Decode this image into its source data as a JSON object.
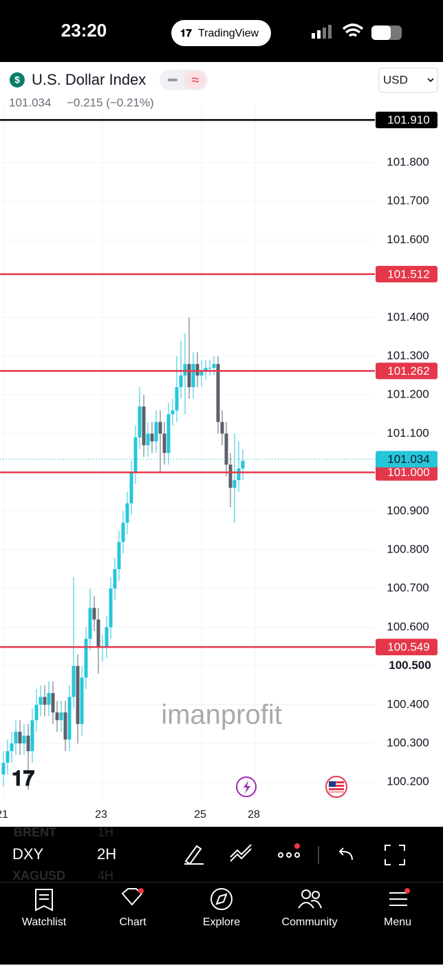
{
  "status_bar": {
    "time": "23:20",
    "app": "TradingView"
  },
  "header": {
    "symbol": "U.S. Dollar Index",
    "price": "101.034",
    "change": "−0.215 (−0.21%)",
    "currency": "USD"
  },
  "chart_data": {
    "type": "candlestick",
    "categories": [
      "21",
      null,
      null,
      null,
      null,
      null,
      null,
      null,
      null,
      null,
      null,
      null,
      null,
      null,
      null,
      null,
      null,
      null,
      null,
      null,
      null,
      null,
      null,
      null,
      "23",
      null,
      null,
      null,
      null,
      null,
      null,
      null,
      null,
      null,
      null,
      null,
      null,
      null,
      null,
      null,
      null,
      null,
      null,
      null,
      null,
      null,
      null,
      null,
      "25",
      null,
      null,
      null,
      null,
      null,
      null,
      null,
      null,
      null,
      null,
      null,
      null,
      "28"
    ],
    "open": [
      100.22,
      100.25,
      100.28,
      100.3,
      100.33,
      100.3,
      100.32,
      100.28,
      100.36,
      100.4,
      100.42,
      100.4,
      100.43,
      100.38,
      100.36,
      100.38,
      100.31,
      100.42,
      100.5,
      100.35,
      100.47,
      100.57,
      100.65,
      100.62,
      100.55,
      100.55,
      100.6,
      100.7,
      100.75,
      100.82,
      100.87,
      100.92,
      101.0,
      101.09,
      101.17,
      101.07,
      101.1,
      101.08,
      101.13,
      101.1,
      101.05,
      101.15,
      101.16,
      101.22,
      101.25,
      101.28,
      101.22,
      101.28,
      101.25,
      101.26,
      101.27,
      101.27,
      101.28,
      101.13,
      101.1,
      101.02,
      100.96,
      100.98,
      101.01,
      null,
      null,
      null
    ],
    "high": [
      100.28,
      100.31,
      100.33,
      100.36,
      100.36,
      100.35,
      100.35,
      100.39,
      100.44,
      100.45,
      100.45,
      100.46,
      100.46,
      100.41,
      100.41,
      100.41,
      100.45,
      100.73,
      100.53,
      100.5,
      100.6,
      100.7,
      100.68,
      100.65,
      100.58,
      100.63,
      100.73,
      100.78,
      100.85,
      100.9,
      100.95,
      101.03,
      101.12,
      101.22,
      101.2,
      101.13,
      101.13,
      101.16,
      101.16,
      101.13,
      101.18,
      101.19,
      101.3,
      101.34,
      101.36,
      101.4,
      101.31,
      101.31,
      101.29,
      101.29,
      101.29,
      101.3,
      101.3,
      101.16,
      101.13,
      101.05,
      101.1,
      101.08,
      101.06,
      null,
      null,
      null
    ],
    "low": [
      100.19,
      100.22,
      100.25,
      100.27,
      100.27,
      100.27,
      100.18,
      100.25,
      100.33,
      100.37,
      100.37,
      100.37,
      100.35,
      100.33,
      100.33,
      100.28,
      100.28,
      100.39,
      100.3,
      100.32,
      100.44,
      100.54,
      100.59,
      100.48,
      100.51,
      100.52,
      100.57,
      100.67,
      100.72,
      100.79,
      100.84,
      100.89,
      100.97,
      101.06,
      101.04,
      101.04,
      101.05,
      101.05,
      101.0,
      101.02,
      101.02,
      101.12,
      101.13,
      101.19,
      101.15,
      101.19,
      101.19,
      101.22,
      101.22,
      101.24,
      101.25,
      101.25,
      101.1,
      101.07,
      100.99,
      100.91,
      100.87,
      100.95,
      100.98,
      null,
      null,
      null
    ],
    "close": [
      100.25,
      100.28,
      100.3,
      100.33,
      100.3,
      100.32,
      100.28,
      100.36,
      100.4,
      100.42,
      100.4,
      100.43,
      100.38,
      100.36,
      100.38,
      100.31,
      100.42,
      100.5,
      100.35,
      100.47,
      100.57,
      100.65,
      100.62,
      100.55,
      100.55,
      100.6,
      100.7,
      100.75,
      100.82,
      100.87,
      100.92,
      101.0,
      101.09,
      101.17,
      101.07,
      101.1,
      101.08,
      101.13,
      101.1,
      101.05,
      101.15,
      101.16,
      101.22,
      101.25,
      101.28,
      101.22,
      101.28,
      101.25,
      101.26,
      101.27,
      101.27,
      101.28,
      101.13,
      101.1,
      101.02,
      100.96,
      100.98,
      101.01,
      101.03,
      null,
      null,
      null
    ],
    "up_color": "#26c6da",
    "down_color": "#5d606b",
    "ylim": [
      100.147,
      101.953
    ],
    "yticks": [
      {
        "value": 100.2,
        "label": "100.200"
      },
      {
        "value": 100.3,
        "label": "100.300"
      },
      {
        "value": 100.4,
        "label": "100.400"
      },
      {
        "value": 100.6,
        "label": "100.600"
      },
      {
        "value": 100.7,
        "label": "100.700"
      },
      {
        "value": 100.8,
        "label": "100.800"
      },
      {
        "value": 100.9,
        "label": "100.900"
      },
      {
        "value": 101.1,
        "label": "101.100"
      },
      {
        "value": 101.2,
        "label": "101.200"
      },
      {
        "value": 101.3,
        "label": "101.300"
      },
      {
        "value": 101.4,
        "label": "101.400"
      },
      {
        "value": 101.6,
        "label": "101.600"
      },
      {
        "value": 101.7,
        "label": "101.700"
      },
      {
        "value": 101.8,
        "label": "101.800"
      }
    ],
    "highlight_level": {
      "value": 100.5,
      "label": "100.500"
    },
    "levels": [
      {
        "value": 101.91,
        "label": "101.910",
        "color": "#000000"
      },
      {
        "value": 101.512,
        "label": "101.512",
        "color": "#e5374a"
      },
      {
        "value": 101.262,
        "label": "101.262",
        "color": "#e5374a"
      },
      {
        "value": 101.0,
        "label": "101.000",
        "color": "#e5374a"
      },
      {
        "value": 100.549,
        "label": "100.549",
        "color": "#e5374a"
      }
    ],
    "last_price": {
      "value": 101.034,
      "label": "101.034",
      "color": "#26c6da"
    },
    "grid": true
  },
  "watermark": "imanprofit",
  "toolbar": {
    "symbol": "DXY",
    "interval": "2H",
    "faded": [
      "BRENT",
      "1H",
      "XAGUSD",
      "4H"
    ]
  },
  "nav": [
    "Watchlist",
    "Chart",
    "Explore",
    "Community",
    "Menu"
  ]
}
